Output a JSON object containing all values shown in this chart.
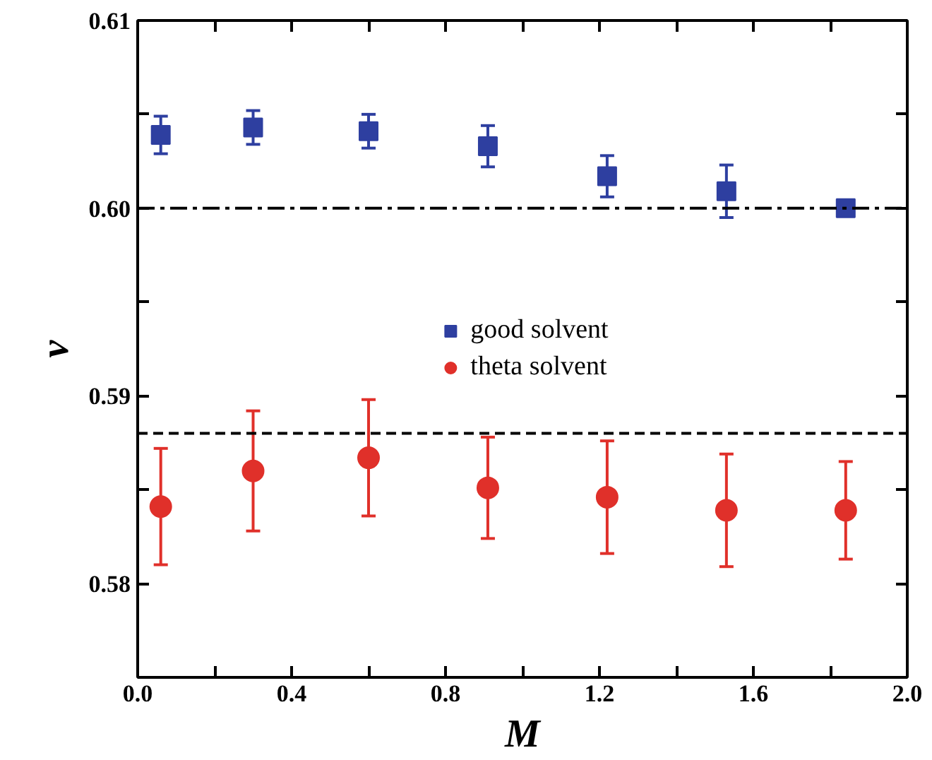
{
  "chart_data": {
    "type": "scatter",
    "xlabel": "M",
    "ylabel": "ν",
    "x": [
      0.06,
      0.3,
      0.6,
      0.91,
      1.22,
      1.53,
      1.84
    ],
    "series": [
      {
        "name": "good solvent",
        "color": "#2e3fa0",
        "marker": "square",
        "values": [
          0.6039,
          0.6043,
          0.6041,
          0.6033,
          0.6017,
          0.6009,
          0.6
        ],
        "errors": [
          0.001,
          0.0009,
          0.0009,
          0.0011,
          0.0011,
          0.0014,
          0.0003
        ]
      },
      {
        "name": "theta solvent",
        "color": "#e0302a",
        "marker": "circle",
        "values": [
          0.5841,
          0.586,
          0.5867,
          0.5851,
          0.5846,
          0.5839,
          0.5839
        ],
        "errors": [
          0.0031,
          0.0032,
          0.0031,
          0.0027,
          0.003,
          0.003,
          0.0026
        ]
      }
    ],
    "xlim": [
      0.0,
      2.0
    ],
    "ylim": [
      0.575,
      0.61
    ],
    "xticks": [
      {
        "value": 0.0,
        "label": "0.0"
      },
      {
        "value": 0.2,
        "label": null
      },
      {
        "value": 0.4,
        "label": "0.4"
      },
      {
        "value": 0.6,
        "label": null
      },
      {
        "value": 0.8,
        "label": "0.8"
      },
      {
        "value": 1.0,
        "label": null
      },
      {
        "value": 1.2,
        "label": "1.2"
      },
      {
        "value": 1.4,
        "label": null
      },
      {
        "value": 1.6,
        "label": "1.6"
      },
      {
        "value": 1.8,
        "label": null
      },
      {
        "value": 2.0,
        "label": "2.0"
      }
    ],
    "yticks": [
      {
        "value": 0.575,
        "label": null
      },
      0.58,
      {
        "value": 0.585,
        "label": null
      },
      0.59,
      {
        "value": 0.595,
        "label": null
      },
      {
        "value": 0.6,
        "label": "0.60"
      },
      {
        "value": 0.605,
        "label": null
      },
      0.61
    ],
    "ref_lines": [
      {
        "axis": "y",
        "value": 0.6,
        "label": null,
        "color": "#000000",
        "line_style": "dashdot"
      },
      {
        "axis": "y",
        "value": 0.588,
        "label": null,
        "color": "#000000",
        "line_style": "dashed"
      }
    ],
    "grid": false,
    "legend": "center"
  }
}
